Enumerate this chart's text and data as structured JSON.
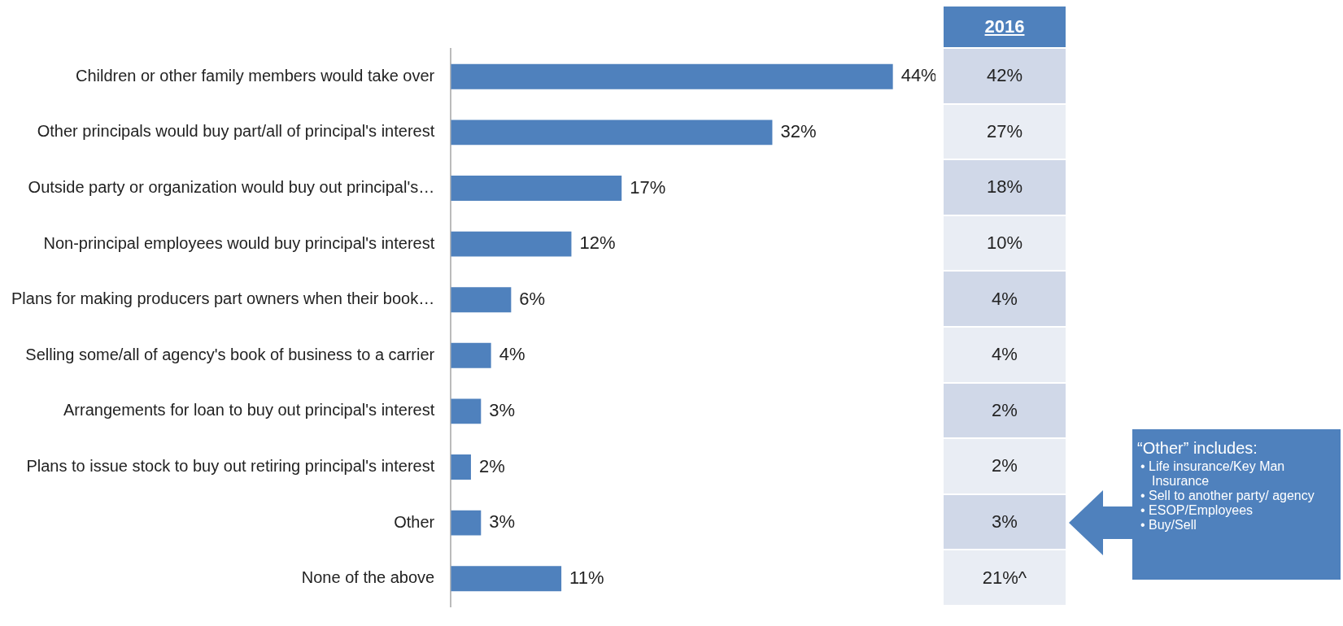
{
  "chart_data": {
    "type": "bar",
    "orientation": "horizontal",
    "categories": [
      "Children or other family members would take over",
      "Other principals would buy part/all of principal's interest",
      "Outside party or organization would buy out principal's…",
      "Non-principal employees would buy principal's interest",
      "Plans for making producers part owners when their book…",
      "Selling some/all of agency's book of business to a carrier",
      "Arrangements for loan to buy out principal's interest",
      "Plans to issue stock to buy out retiring principal's interest",
      "Other",
      "None of the above"
    ],
    "values": [
      44,
      32,
      17,
      12,
      6,
      4,
      3,
      2,
      3,
      11
    ],
    "value_labels": [
      "44%",
      "32%",
      "17%",
      "12%",
      "6%",
      "4%",
      "3%",
      "2%",
      "3%",
      "11%"
    ],
    "color": "#4f81bd",
    "tick_labels": "y",
    "legend": false,
    "annotations": [
      "2016",
      "42%",
      "27%",
      "18%",
      "10%",
      "4%",
      "4%",
      "2%",
      "2%",
      "3%",
      "21%^",
      "“Other” includes:",
      "• Life insurance/Key Man Insurance",
      "• Sell to another party/ agency",
      "• ESOP/Employees",
      "• Buy/Sell"
    ]
  }
}
